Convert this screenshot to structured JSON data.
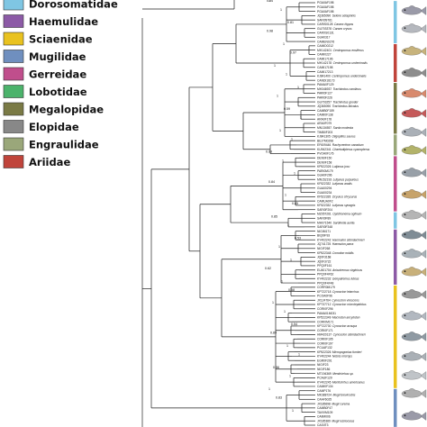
{
  "legend": {
    "items": [
      {
        "label": "Dorosomatidae",
        "color": "#7fc6e3"
      },
      {
        "label": "Haemulidae",
        "color": "#8c5aa6"
      },
      {
        "label": "Sciaenidae",
        "color": "#e9c21f"
      },
      {
        "label": "Mugilidae",
        "color": "#6f8fbf"
      },
      {
        "label": "Gerreidae",
        "color": "#c04e8c"
      },
      {
        "label": "Lobotidae",
        "color": "#4bb36b"
      },
      {
        "label": "Megalopidae",
        "color": "#7a7a45"
      },
      {
        "label": "Elopidae",
        "color": "#888888"
      },
      {
        "label": "Engraulidae",
        "color": "#9aa77a"
      },
      {
        "label": "Ariidae",
        "color": "#c0443b"
      }
    ]
  },
  "tree": {
    "tips": [
      {
        "id": "PGA0AF198",
        "name": ""
      },
      {
        "id": "PGA0AF198",
        "name": ""
      },
      {
        "id": "PGA0AF198",
        "name": ""
      },
      {
        "id": "JQ365090",
        "name": "Selene setapinnis"
      },
      {
        "id": "SARI09761",
        "name": ""
      },
      {
        "id": "CARIS0128",
        "name": "Caranx hippos"
      },
      {
        "id": "GU703378",
        "name": "Caranx crysos"
      },
      {
        "id": "CARXS0131",
        "name": ""
      },
      {
        "id": "GUA0317",
        "name": ""
      },
      {
        "id": "CAMEN0276",
        "name": ""
      },
      {
        "id": "CAMID0212",
        "name": ""
      },
      {
        "id": "MH142401",
        "name": "Centropomus ensiferus"
      },
      {
        "id": "CAMI0227",
        "name": ""
      },
      {
        "id": "CAMI17196",
        "name": ""
      },
      {
        "id": "MH142178",
        "name": "Centropomus undecimalis"
      },
      {
        "id": "CAMI17198",
        "name": ""
      },
      {
        "id": "CAMI17213",
        "name": ""
      },
      {
        "id": "KJ841400",
        "name": "Centropomus undecimalis"
      },
      {
        "id": "CANDI16173",
        "name": ""
      },
      {
        "id": "PAMA0F129",
        "name": ""
      },
      {
        "id": "MH346937",
        "name": "Trachinotus carolinus"
      },
      {
        "id": "PARI0F127",
        "name": ""
      },
      {
        "id": "PARI0F226",
        "name": ""
      },
      {
        "id": "GU703257",
        "name": "Trachinotus goodei"
      },
      {
        "id": "JQ365090",
        "name": "Trachinotus falcatus"
      },
      {
        "id": "CAMB0F159",
        "name": ""
      },
      {
        "id": "CAMI0F138",
        "name": ""
      },
      {
        "id": "ARA0F178",
        "name": ""
      },
      {
        "id": "ARA0F079",
        "name": ""
      },
      {
        "id": "MN134557",
        "name": "Sarda modesta"
      },
      {
        "id": "TIMB0F203",
        "name": ""
      },
      {
        "id": "KJ841305",
        "name": "Oligoplites saurus"
      },
      {
        "id": "BEJ7M0298",
        "name": ""
      },
      {
        "id": "EF609446",
        "name": "Rachycentron canadum"
      },
      {
        "id": "KU942341",
        "name": "Chaetodipterus cyanopterus"
      },
      {
        "id": "PVOA0F176",
        "name": ""
      },
      {
        "id": "DEN0F150",
        "name": ""
      },
      {
        "id": "DEN0F158",
        "name": ""
      },
      {
        "id": "KP522326",
        "name": "Lutjanus jocu"
      },
      {
        "id": "PARI0M179",
        "name": ""
      },
      {
        "id": "GUA0F296",
        "name": ""
      },
      {
        "id": "MN152193",
        "name": "Lutjanus purpureus"
      },
      {
        "id": "KF522332",
        "name": "Lutjanus analis"
      },
      {
        "id": "GUA00294",
        "name": ""
      },
      {
        "id": "GUA00234",
        "name": ""
      },
      {
        "id": "KF522335",
        "name": "Ocyurus chrysurus"
      },
      {
        "id": "CAMUA0F2",
        "name": ""
      },
      {
        "id": "KF522332",
        "name": "Lutjanus synagris"
      },
      {
        "id": "SARI0F204",
        "name": ""
      },
      {
        "id": "MZ057261",
        "name": "Opisthonema oglinum"
      },
      {
        "id": "SARI0F89",
        "name": ""
      },
      {
        "id": "MH071540",
        "name": "Sardinella aurita"
      },
      {
        "id": "SARI0F348",
        "name": ""
      },
      {
        "id": "NIGIM171",
        "name": ""
      },
      {
        "id": "BIQ0IF93",
        "name": ""
      },
      {
        "id": "KY402242",
        "name": "Haemulon steindachneri"
      },
      {
        "id": "JQ741725",
        "name": "Haemulon parra"
      },
      {
        "id": "NIGIF268",
        "name": ""
      },
      {
        "id": "KP522348",
        "name": "Conodon nobilis"
      },
      {
        "id": "JQ0F3168",
        "name": ""
      },
      {
        "id": "JQ0F3722",
        "name": ""
      },
      {
        "id": "PPQ0F161",
        "name": ""
      },
      {
        "id": "EU401704",
        "name": "Anisotremus virginicus"
      },
      {
        "id": "PPQ0F4F62",
        "name": ""
      },
      {
        "id": "KY402232",
        "name": "Genyatremus luteus"
      },
      {
        "id": "PPQ0F4F48",
        "name": ""
      },
      {
        "id": "CORR0M179",
        "name": ""
      },
      {
        "id": "KP722718",
        "name": "Cynoscion leiarchus"
      },
      {
        "id": "PCOA0F96",
        "name": ""
      },
      {
        "id": "JX124764",
        "name": "Cynoscion virescens"
      },
      {
        "id": "KP737712",
        "name": "Cynoscion microlepidotus"
      },
      {
        "id": "CORI0F296",
        "name": ""
      },
      {
        "id": "PAMA01M031",
        "name": ""
      },
      {
        "id": "KP522349",
        "name": "Macrodon ancylodon"
      },
      {
        "id": "CORI0M171",
        "name": ""
      },
      {
        "id": "KP722730",
        "name": "Cynoscion acoupa"
      },
      {
        "id": "CORI0F171",
        "name": ""
      },
      {
        "id": "HM420137",
        "name": "Cynoscion steindachneri"
      },
      {
        "id": "CORI0F195",
        "name": ""
      },
      {
        "id": "CORI0F197",
        "name": ""
      },
      {
        "id": "PCUAF132",
        "name": ""
      },
      {
        "id": "KP522326",
        "name": "Micropogonias furnieri"
      },
      {
        "id": "KY402244",
        "name": "Nebris microps"
      },
      {
        "id": "EGR0F291",
        "name": ""
      },
      {
        "id": "NIGIF23",
        "name": ""
      },
      {
        "id": "NIGIF186",
        "name": ""
      },
      {
        "id": "MT194369",
        "name": "Menticirrhus sp."
      },
      {
        "id": "PCAUF129",
        "name": ""
      },
      {
        "id": "KY402245",
        "name": "Menticirrhus americanus"
      },
      {
        "id": "CAIM0F134",
        "name": ""
      },
      {
        "id": "CAMP176",
        "name": ""
      },
      {
        "id": "MK388724",
        "name": "Mugil brevirostris"
      },
      {
        "id": "CAAF6025",
        "name": ""
      },
      {
        "id": "JX185698",
        "name": "Mugil curema"
      },
      {
        "id": "CAMB0F47",
        "name": ""
      },
      {
        "id": "TAVIVM109",
        "name": ""
      },
      {
        "id": "CAIIM006",
        "name": ""
      },
      {
        "id": "JX185389",
        "name": "Mugil rubrioculus"
      },
      {
        "id": "CASIIT3",
        "name": ""
      }
    ],
    "bootstrap": [
      {
        "label": "1"
      },
      {
        "label": "1"
      },
      {
        "label": "0.81"
      },
      {
        "label": "0.98"
      },
      {
        "label": "1"
      },
      {
        "label": "0.97"
      },
      {
        "label": "1"
      },
      {
        "label": "1"
      },
      {
        "label": "1"
      },
      {
        "label": "1"
      },
      {
        "label": "0.59"
      },
      {
        "label": "1"
      },
      {
        "label": "1"
      },
      {
        "label": "1"
      },
      {
        "label": "0.99"
      },
      {
        "label": "1"
      },
      {
        "label": "1"
      },
      {
        "label": "0.84"
      },
      {
        "label": "1"
      },
      {
        "label": "0.85"
      },
      {
        "label": "0.85"
      },
      {
        "label": "1"
      },
      {
        "label": "0.53"
      },
      {
        "label": "1"
      },
      {
        "label": "1"
      },
      {
        "label": "0.62"
      },
      {
        "label": "1"
      },
      {
        "label": "0.58"
      },
      {
        "label": "1"
      },
      {
        "label": "1"
      },
      {
        "label": "0.54"
      },
      {
        "label": "0.89"
      },
      {
        "label": "1"
      },
      {
        "label": "1"
      },
      {
        "label": "0.56"
      },
      {
        "label": "1"
      },
      {
        "label": "1"
      },
      {
        "label": "0.83"
      },
      {
        "label": "1"
      },
      {
        "label": "0.54"
      }
    ]
  }
}
